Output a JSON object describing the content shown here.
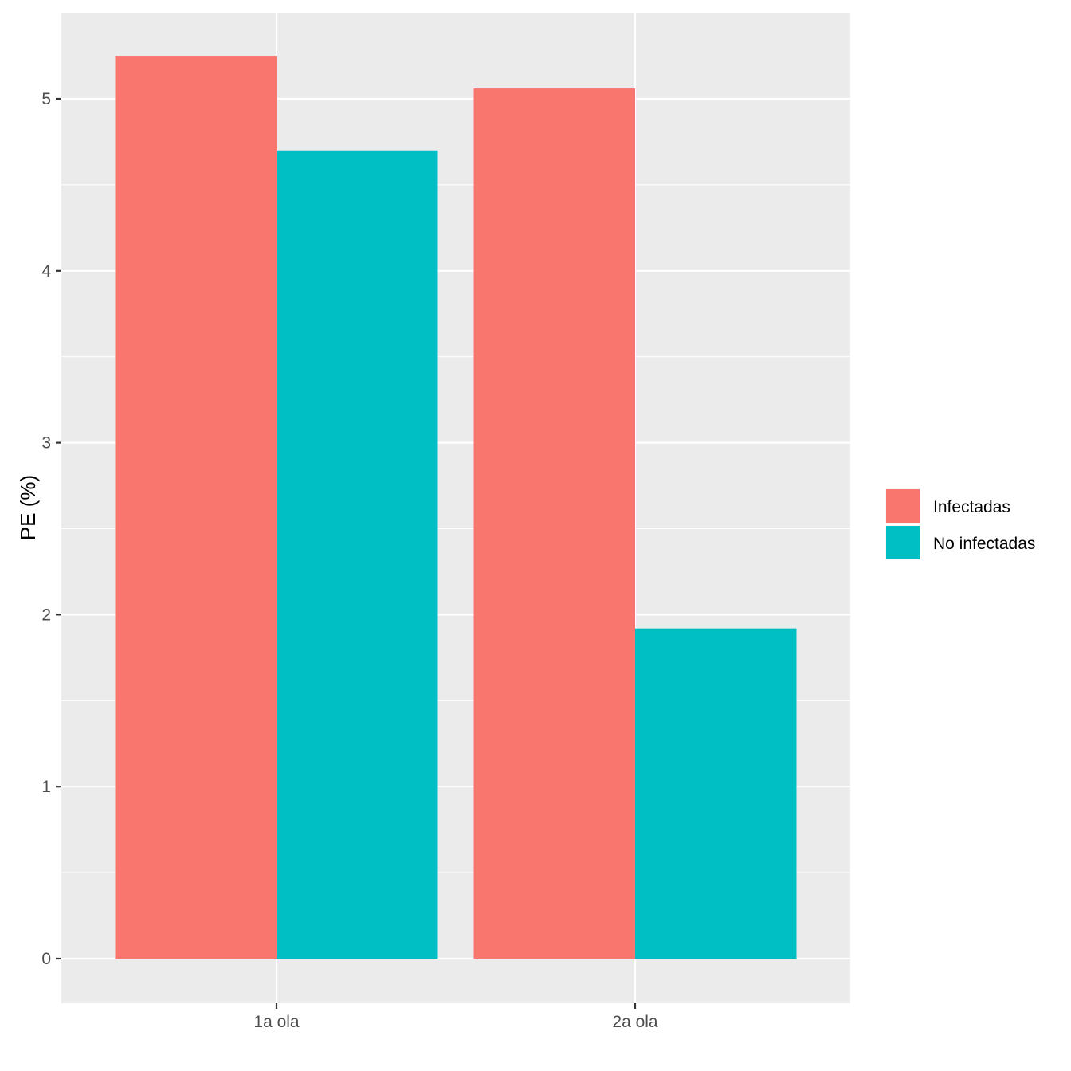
{
  "chart_data": {
    "type": "bar",
    "categories": [
      "1a ola",
      "2a ola"
    ],
    "series": [
      {
        "name": "Infectadas",
        "values": [
          5.25,
          5.06
        ],
        "color": "#F8766D"
      },
      {
        "name": "No infectadas",
        "values": [
          4.7,
          1.92
        ],
        "color": "#00BFC4"
      }
    ],
    "title": "",
    "xlabel": "",
    "ylabel": "PE (%)",
    "ylim": [
      -0.26,
      5.5
    ],
    "yticks": [
      0,
      1,
      2,
      3,
      4,
      5
    ],
    "ytick_labels": [
      "0",
      "1",
      "2",
      "3",
      "4",
      "5"
    ],
    "grid": true,
    "legend_position": "right",
    "panel_color": "#EBEBEB",
    "grid_color": "#FFFFFF"
  }
}
